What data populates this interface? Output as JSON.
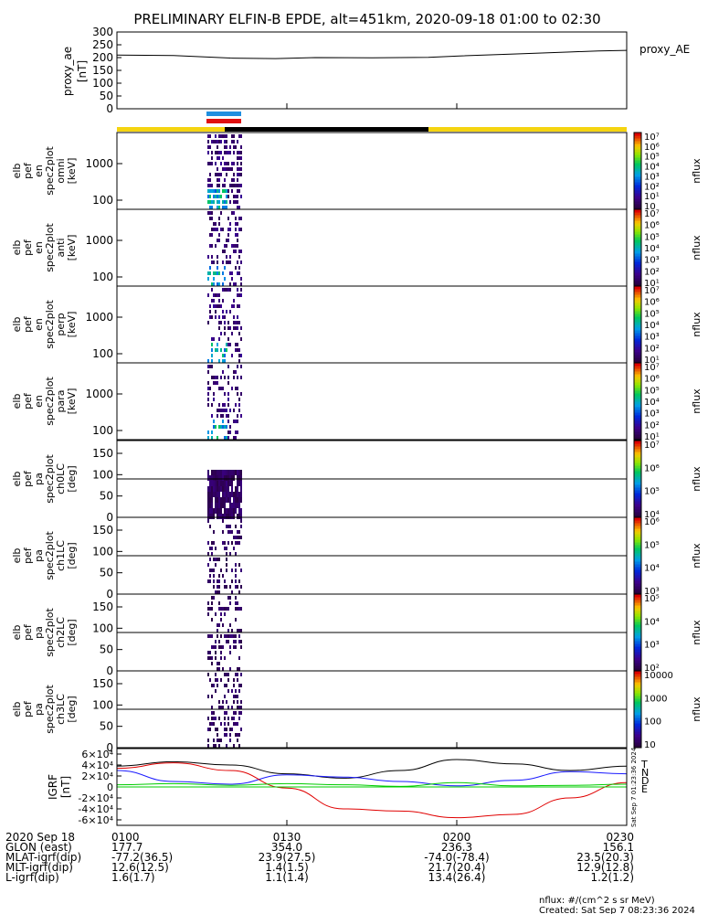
{
  "title": "PRELIMINARY ELFIN-B EPDE, alt=451km, 2020-09-18 01:00 to 02:30",
  "colors": {
    "sunlight": "#f5d410",
    "eclipse": "#000000",
    "bar_blue": "#1f8fe0",
    "bar_red": "#e01010",
    "bx": "#1a1aff",
    "by": "#e00000",
    "bz": "#00cc00",
    "btot": "#000000"
  },
  "chart_data": [
    {
      "type": "line",
      "name": "proxy_ae",
      "ylabel": "proxy_ae [nT]",
      "legend": "proxy_AE",
      "yticks": [
        0,
        50,
        100,
        150,
        200,
        250,
        300
      ],
      "ylim": [
        0,
        300
      ],
      "x_minutes": [
        0,
        10,
        20,
        28,
        35,
        45,
        55,
        60,
        70,
        80,
        85,
        90
      ],
      "values": [
        210,
        208,
        198,
        196,
        200,
        199,
        201,
        206,
        214,
        222,
        226,
        228
      ]
    },
    {
      "type": "heatmap",
      "ylabel": [
        "elb",
        "pef",
        "en",
        "spec2plot",
        "omni",
        "[keV]"
      ],
      "yticks": [
        "100",
        "1000"
      ],
      "colorbar_ticks": [
        "10",
        "10¹",
        "10²",
        "10³",
        "10⁴",
        "10⁵",
        "10⁶",
        "10⁷"
      ],
      "colorbar_label": "nflux"
    },
    {
      "type": "heatmap",
      "ylabel": [
        "elb",
        "pef",
        "en",
        "spec2plot",
        "anti",
        "[keV]"
      ],
      "yticks": [
        "100",
        "1000"
      ],
      "colorbar_ticks": [
        "10¹",
        "10²",
        "10³",
        "10⁴",
        "10⁵",
        "10⁶",
        "10⁷"
      ],
      "colorbar_label": "nflux"
    },
    {
      "type": "heatmap",
      "ylabel": [
        "elb",
        "pef",
        "en",
        "spec2plot",
        "perp",
        "[keV]"
      ],
      "yticks": [
        "100",
        "1000"
      ],
      "colorbar_ticks": [
        "10¹",
        "10²",
        "10³",
        "10⁴",
        "10⁵",
        "10⁶",
        "10⁷"
      ],
      "colorbar_label": "nflux"
    },
    {
      "type": "heatmap",
      "ylabel": [
        "elb",
        "pef",
        "en",
        "spec2plot",
        "para",
        "[keV]"
      ],
      "yticks": [
        "100",
        "1000"
      ],
      "colorbar_ticks": [
        "10¹",
        "10²",
        "10³",
        "10⁴",
        "10⁵",
        "10⁶",
        "10⁷"
      ],
      "colorbar_label": "nflux"
    },
    {
      "type": "heatmap",
      "ylabel": [
        "elb",
        "pef",
        "pa",
        "spec2plot",
        "ch0LC",
        "[deg]"
      ],
      "yticks": [
        "0",
        "50",
        "100",
        "150"
      ],
      "colorbar_ticks": [
        "10⁴",
        "10⁵",
        "10⁶",
        "10⁷"
      ],
      "colorbar_label": "nflux"
    },
    {
      "type": "heatmap",
      "ylabel": [
        "elb",
        "pef",
        "pa",
        "spec2plot",
        "ch1LC",
        "[deg]"
      ],
      "yticks": [
        "0",
        "50",
        "100",
        "150"
      ],
      "colorbar_ticks": [
        "10³",
        "10⁴",
        "10⁵",
        "10⁶"
      ],
      "colorbar_label": "nflux"
    },
    {
      "type": "heatmap",
      "ylabel": [
        "elb",
        "pef",
        "pa",
        "spec2plot",
        "ch2LC",
        "[deg]"
      ],
      "yticks": [
        "0",
        "50",
        "100",
        "150"
      ],
      "colorbar_ticks": [
        "10²",
        "10³",
        "10⁴",
        "10⁵"
      ],
      "colorbar_label": "nflux"
    },
    {
      "type": "heatmap",
      "ylabel": [
        "elb",
        "pef",
        "pa",
        "spec2plot",
        "ch3LC",
        "[deg]"
      ],
      "yticks": [
        "0",
        "50",
        "100",
        "150"
      ],
      "colorbar_ticks": [
        "10",
        "100",
        "1000",
        "10000"
      ],
      "colorbar_label": "nflux"
    },
    {
      "type": "line",
      "name": "IGRF",
      "ylabel": "IGRF [nT]",
      "yticks": [
        "-6×10⁴",
        "-4×10⁴",
        "-2×10⁴",
        "0",
        "2×10⁴",
        "4×10⁴",
        "6×10⁴"
      ],
      "ylim": [
        -70000,
        70000
      ],
      "legend": [
        "T",
        "N",
        "D",
        "E"
      ],
      "x_minutes": [
        0,
        10,
        20,
        30,
        40,
        50,
        60,
        70,
        80,
        90
      ],
      "series": [
        {
          "values": [
            38000,
            46000,
            40000,
            24000,
            16000,
            30000,
            50000,
            42000,
            30000,
            38000
          ]
        },
        {
          "values": [
            30000,
            10000,
            5000,
            22000,
            18000,
            10000,
            2000,
            12000,
            28000,
            24000
          ]
        },
        {
          "values": [
            34000,
            44000,
            30000,
            -2000,
            -40000,
            -44000,
            -56000,
            -50000,
            -20000,
            8000
          ]
        },
        {
          "values": [
            4000,
            6000,
            3000,
            6000,
            4000,
            1000,
            8000,
            2000,
            3000,
            5000
          ]
        }
      ]
    }
  ],
  "x_axis": {
    "ticks": [
      "0100",
      "0130",
      "0200",
      "0230"
    ],
    "rows": [
      {
        "label": "2020 Sep 18",
        "values": [
          "0100",
          "0130",
          "0200",
          "0230"
        ]
      },
      {
        "label": "GLON (east)",
        "values": [
          "177.7",
          "354.0",
          "236.3",
          "156.1"
        ]
      },
      {
        "label": "MLAT-igrf(dip)",
        "values": [
          "-77.2(36.5)",
          "23.9(27.5)",
          "-74.0(-78.4)",
          "23.5(20.3)"
        ]
      },
      {
        "label": "MLT-igrf(dip)",
        "values": [
          "12.6(12.5)",
          "1.4(1.5)",
          "21.7(20.4)",
          "12.9(12.8)"
        ]
      },
      {
        "label": "L-igrf(dip)",
        "values": [
          "1.6(1.7)",
          "1.1(1.4)",
          "13.4(26.4)",
          "1.2(1.2)"
        ]
      }
    ]
  },
  "footer": {
    "units": "nflux: #/(cm^2 s sr MeV)",
    "created": "Created: Sat Sep  7 08:23:36 2024",
    "side_stamp": "Sat Sep  7 01:23:36 2024"
  }
}
